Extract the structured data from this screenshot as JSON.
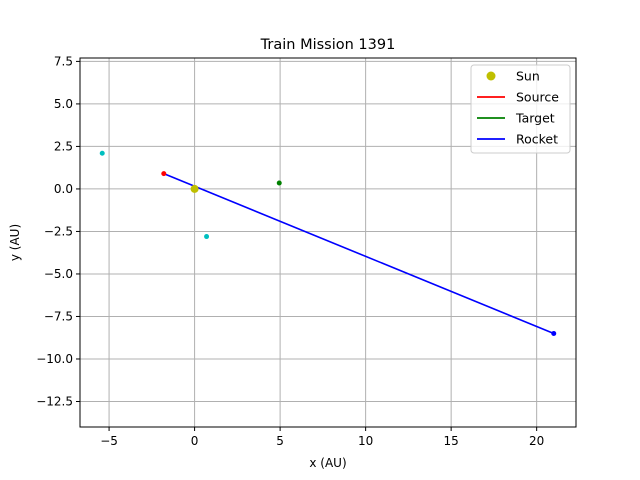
{
  "chart_data": {
    "type": "scatter",
    "title": "Train Mission 1391",
    "xlabel": "x (AU)",
    "ylabel": "y (AU)",
    "xlim": [
      -6.7,
      22.3
    ],
    "ylim": [
      -14.0,
      7.7
    ],
    "xticks": [
      -5,
      0,
      5,
      10,
      15,
      20
    ],
    "xtick_labels": [
      "−5",
      "0",
      "5",
      "10",
      "15",
      "20"
    ],
    "yticks": [
      7.5,
      5.0,
      2.5,
      0.0,
      -2.5,
      -5.0,
      -7.5,
      -10.0,
      -12.5
    ],
    "ytick_labels": [
      "7.5",
      "5.0",
      "2.5",
      "0.0",
      "−2.5",
      "−5.0",
      "−7.5",
      "−10.0",
      "−12.5"
    ],
    "grid": true,
    "legend_position": "upper right",
    "legend": [
      {
        "label": "Sun",
        "color": "#bfbf00",
        "marker": "circle"
      },
      {
        "label": "Source",
        "color": "#ff0000",
        "marker": "line"
      },
      {
        "label": "Target",
        "color": "#008000",
        "marker": "line"
      },
      {
        "label": "Rocket",
        "color": "#0000ff",
        "marker": "line"
      }
    ],
    "sun": {
      "x": 0.0,
      "y": 0.0,
      "color": "#bfbf00"
    },
    "source": {
      "x": -1.8,
      "y": 0.9,
      "color": "#ff0000"
    },
    "target": {
      "x": 4.95,
      "y": 0.35,
      "color": "#008000"
    },
    "rocket": {
      "color": "#0000ff",
      "points": [
        {
          "x": -1.8,
          "y": 0.9
        },
        {
          "x": 21.0,
          "y": -8.5
        }
      ],
      "end_marker": {
        "x": 21.0,
        "y": -8.5
      }
    },
    "other_bodies": [
      {
        "x": -5.4,
        "y": 2.1,
        "color": "#00bfbf"
      },
      {
        "x": 0.7,
        "y": -2.8,
        "color": "#00bfbf"
      }
    ]
  }
}
